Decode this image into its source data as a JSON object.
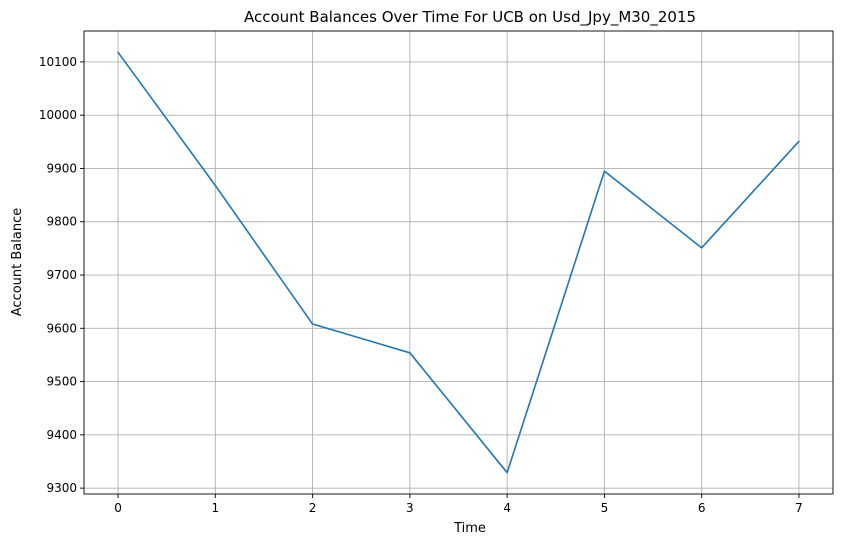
{
  "chart_data": {
    "type": "line",
    "title": "Account Balances Over Time For UCB on Usd_Jpy_M30_2015",
    "xlabel": "Time",
    "ylabel": "Account Balance",
    "x": [
      0,
      1,
      2,
      3,
      4,
      5,
      6,
      7
    ],
    "series": [
      {
        "values": [
          10118,
          9868,
          9608,
          9554,
          9329,
          9895,
          9751,
          9951
        ],
        "color": "#1f77b4"
      }
    ],
    "xlim": [
      -0.35,
      7.35
    ],
    "ylim": [
      9289,
      10158
    ],
    "xticks": [
      0,
      1,
      2,
      3,
      4,
      5,
      6,
      7
    ],
    "xtick_labels": [
      "0",
      "1",
      "2",
      "3",
      "4",
      "5",
      "6",
      "7"
    ],
    "yticks": [
      9300,
      9400,
      9500,
      9600,
      9700,
      9800,
      9900,
      10000,
      10100
    ],
    "ytick_labels": [
      "9300",
      "9400",
      "9500",
      "9600",
      "9700",
      "9800",
      "9900",
      "10000",
      "10100"
    ],
    "grid": true,
    "legend": "none"
  }
}
